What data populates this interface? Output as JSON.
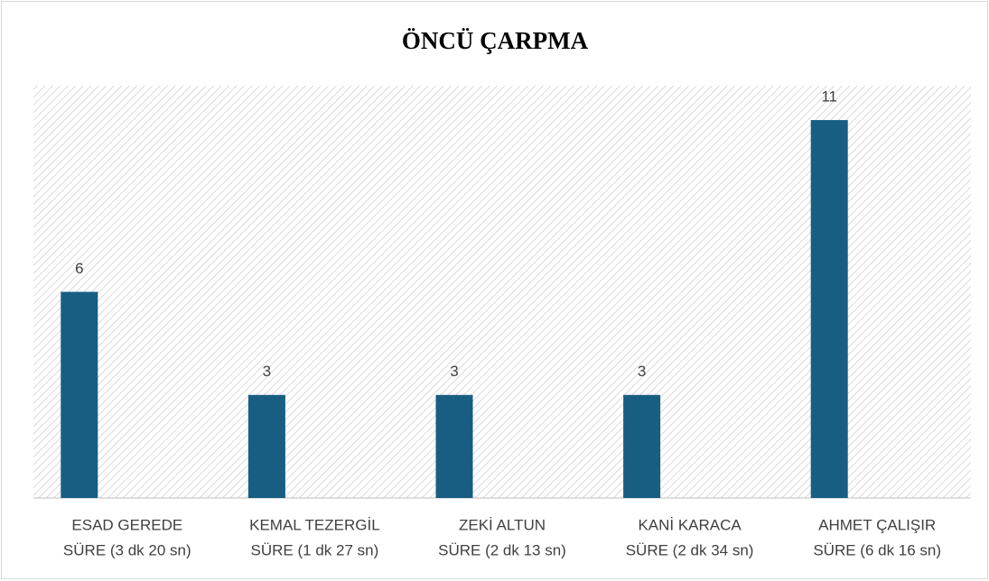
{
  "chart_data": {
    "type": "bar",
    "title": "ÖNCÜ ÇARPMA",
    "categories": [
      [
        "ESAD GEREDE",
        "SÜRE (3 dk 20 sn)"
      ],
      [
        "KEMAL TEZERGİL",
        "SÜRE (1 dk 27 sn)"
      ],
      [
        "ZEKİ ALTUN",
        "SÜRE (2 dk 13 sn)"
      ],
      [
        "KANİ KARACA",
        "SÜRE (2 dk 34 sn)"
      ],
      [
        "AHMET ÇALIŞIR",
        "SÜRE (6 dk 16 sn)"
      ]
    ],
    "values": [
      6,
      3,
      3,
      3,
      11
    ],
    "color": "#175e82",
    "ylim": [
      0,
      12
    ]
  }
}
